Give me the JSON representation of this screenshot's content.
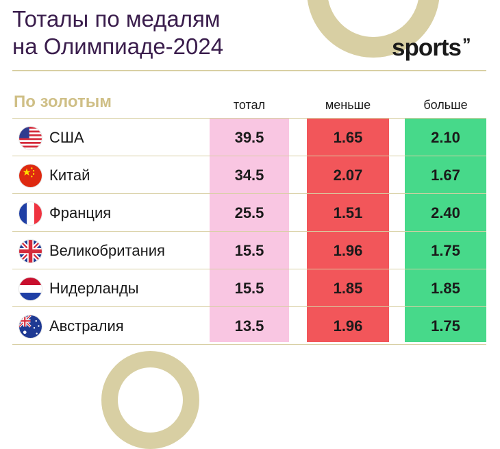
{
  "header": {
    "title_line1": "Тоталы по медалям",
    "title_line2": "на Олимпиаде-2024",
    "logo_text": "sports",
    "logo_mark": "’’"
  },
  "table": {
    "section_label": "По золотым",
    "columns": {
      "total": "тотал",
      "less": "меньше",
      "more": "больше"
    },
    "rows": [
      {
        "country": "США",
        "flag": "usa-flag-icon",
        "total": "39.5",
        "less": "1.65",
        "more": "2.10"
      },
      {
        "country": "Китай",
        "flag": "china-flag-icon",
        "total": "34.5",
        "less": "2.07",
        "more": "1.67"
      },
      {
        "country": "Франция",
        "flag": "france-flag-icon",
        "total": "25.5",
        "less": "1.51",
        "more": "2.40"
      },
      {
        "country": "Великобритания",
        "flag": "uk-flag-icon",
        "total": "15.5",
        "less": "1.96",
        "more": "1.75"
      },
      {
        "country": "Нидерланды",
        "flag": "netherlands-flag-icon",
        "total": "15.5",
        "less": "1.85",
        "more": "1.85"
      },
      {
        "country": "Австралия",
        "flag": "australia-flag-icon",
        "total": "13.5",
        "less": "1.96",
        "more": "1.75"
      }
    ]
  },
  "colors": {
    "title": "#3a1d4c",
    "gold_accent": "#d8cfa3",
    "total_column": "#f9c6e2",
    "less_column": "#f2565a",
    "more_column": "#47d98a"
  }
}
